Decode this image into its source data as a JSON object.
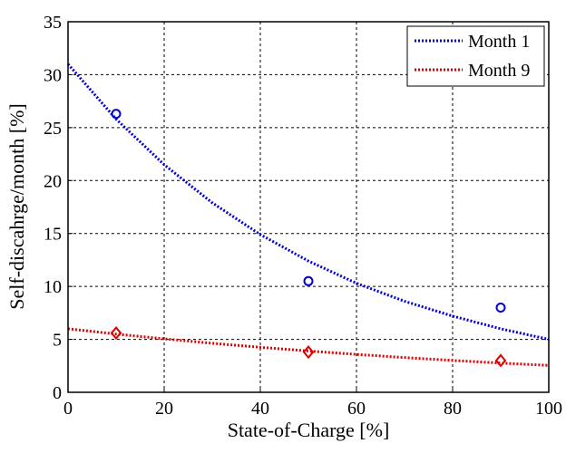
{
  "chart_data": {
    "type": "line",
    "title": "",
    "xlabel": "State-of-Charge [%]",
    "ylabel": "Self-discahrge/month [%]",
    "xlim": [
      0,
      100
    ],
    "ylim": [
      0,
      35
    ],
    "xticks": [
      0,
      20,
      40,
      60,
      80,
      100
    ],
    "yticks": [
      0,
      5,
      10,
      15,
      20,
      25,
      30,
      35
    ],
    "grid": true,
    "legend_position": "top-right",
    "series": [
      {
        "name": "Month 1",
        "color": "#0000dd",
        "marker": "circle",
        "points": {
          "x": [
            10,
            50,
            90
          ],
          "y": [
            26.3,
            10.5,
            8.0
          ]
        },
        "fit": {
          "x": [
            0,
            10,
            20,
            30,
            40,
            50,
            60,
            70,
            80,
            90,
            100
          ],
          "y": [
            31.0,
            25.8,
            21.5,
            17.9,
            14.9,
            12.4,
            10.3,
            8.6,
            7.2,
            6.0,
            5.0
          ]
        }
      },
      {
        "name": "Month 9",
        "color": "#dd0000",
        "marker": "diamond",
        "points": {
          "x": [
            10,
            50,
            90
          ],
          "y": [
            5.6,
            3.8,
            3.0
          ]
        },
        "fit": {
          "x": [
            0,
            10,
            20,
            30,
            40,
            50,
            60,
            70,
            80,
            90,
            100
          ],
          "y": [
            6.0,
            5.5,
            5.05,
            4.63,
            4.25,
            3.9,
            3.58,
            3.28,
            3.01,
            2.76,
            2.54
          ]
        }
      }
    ]
  }
}
